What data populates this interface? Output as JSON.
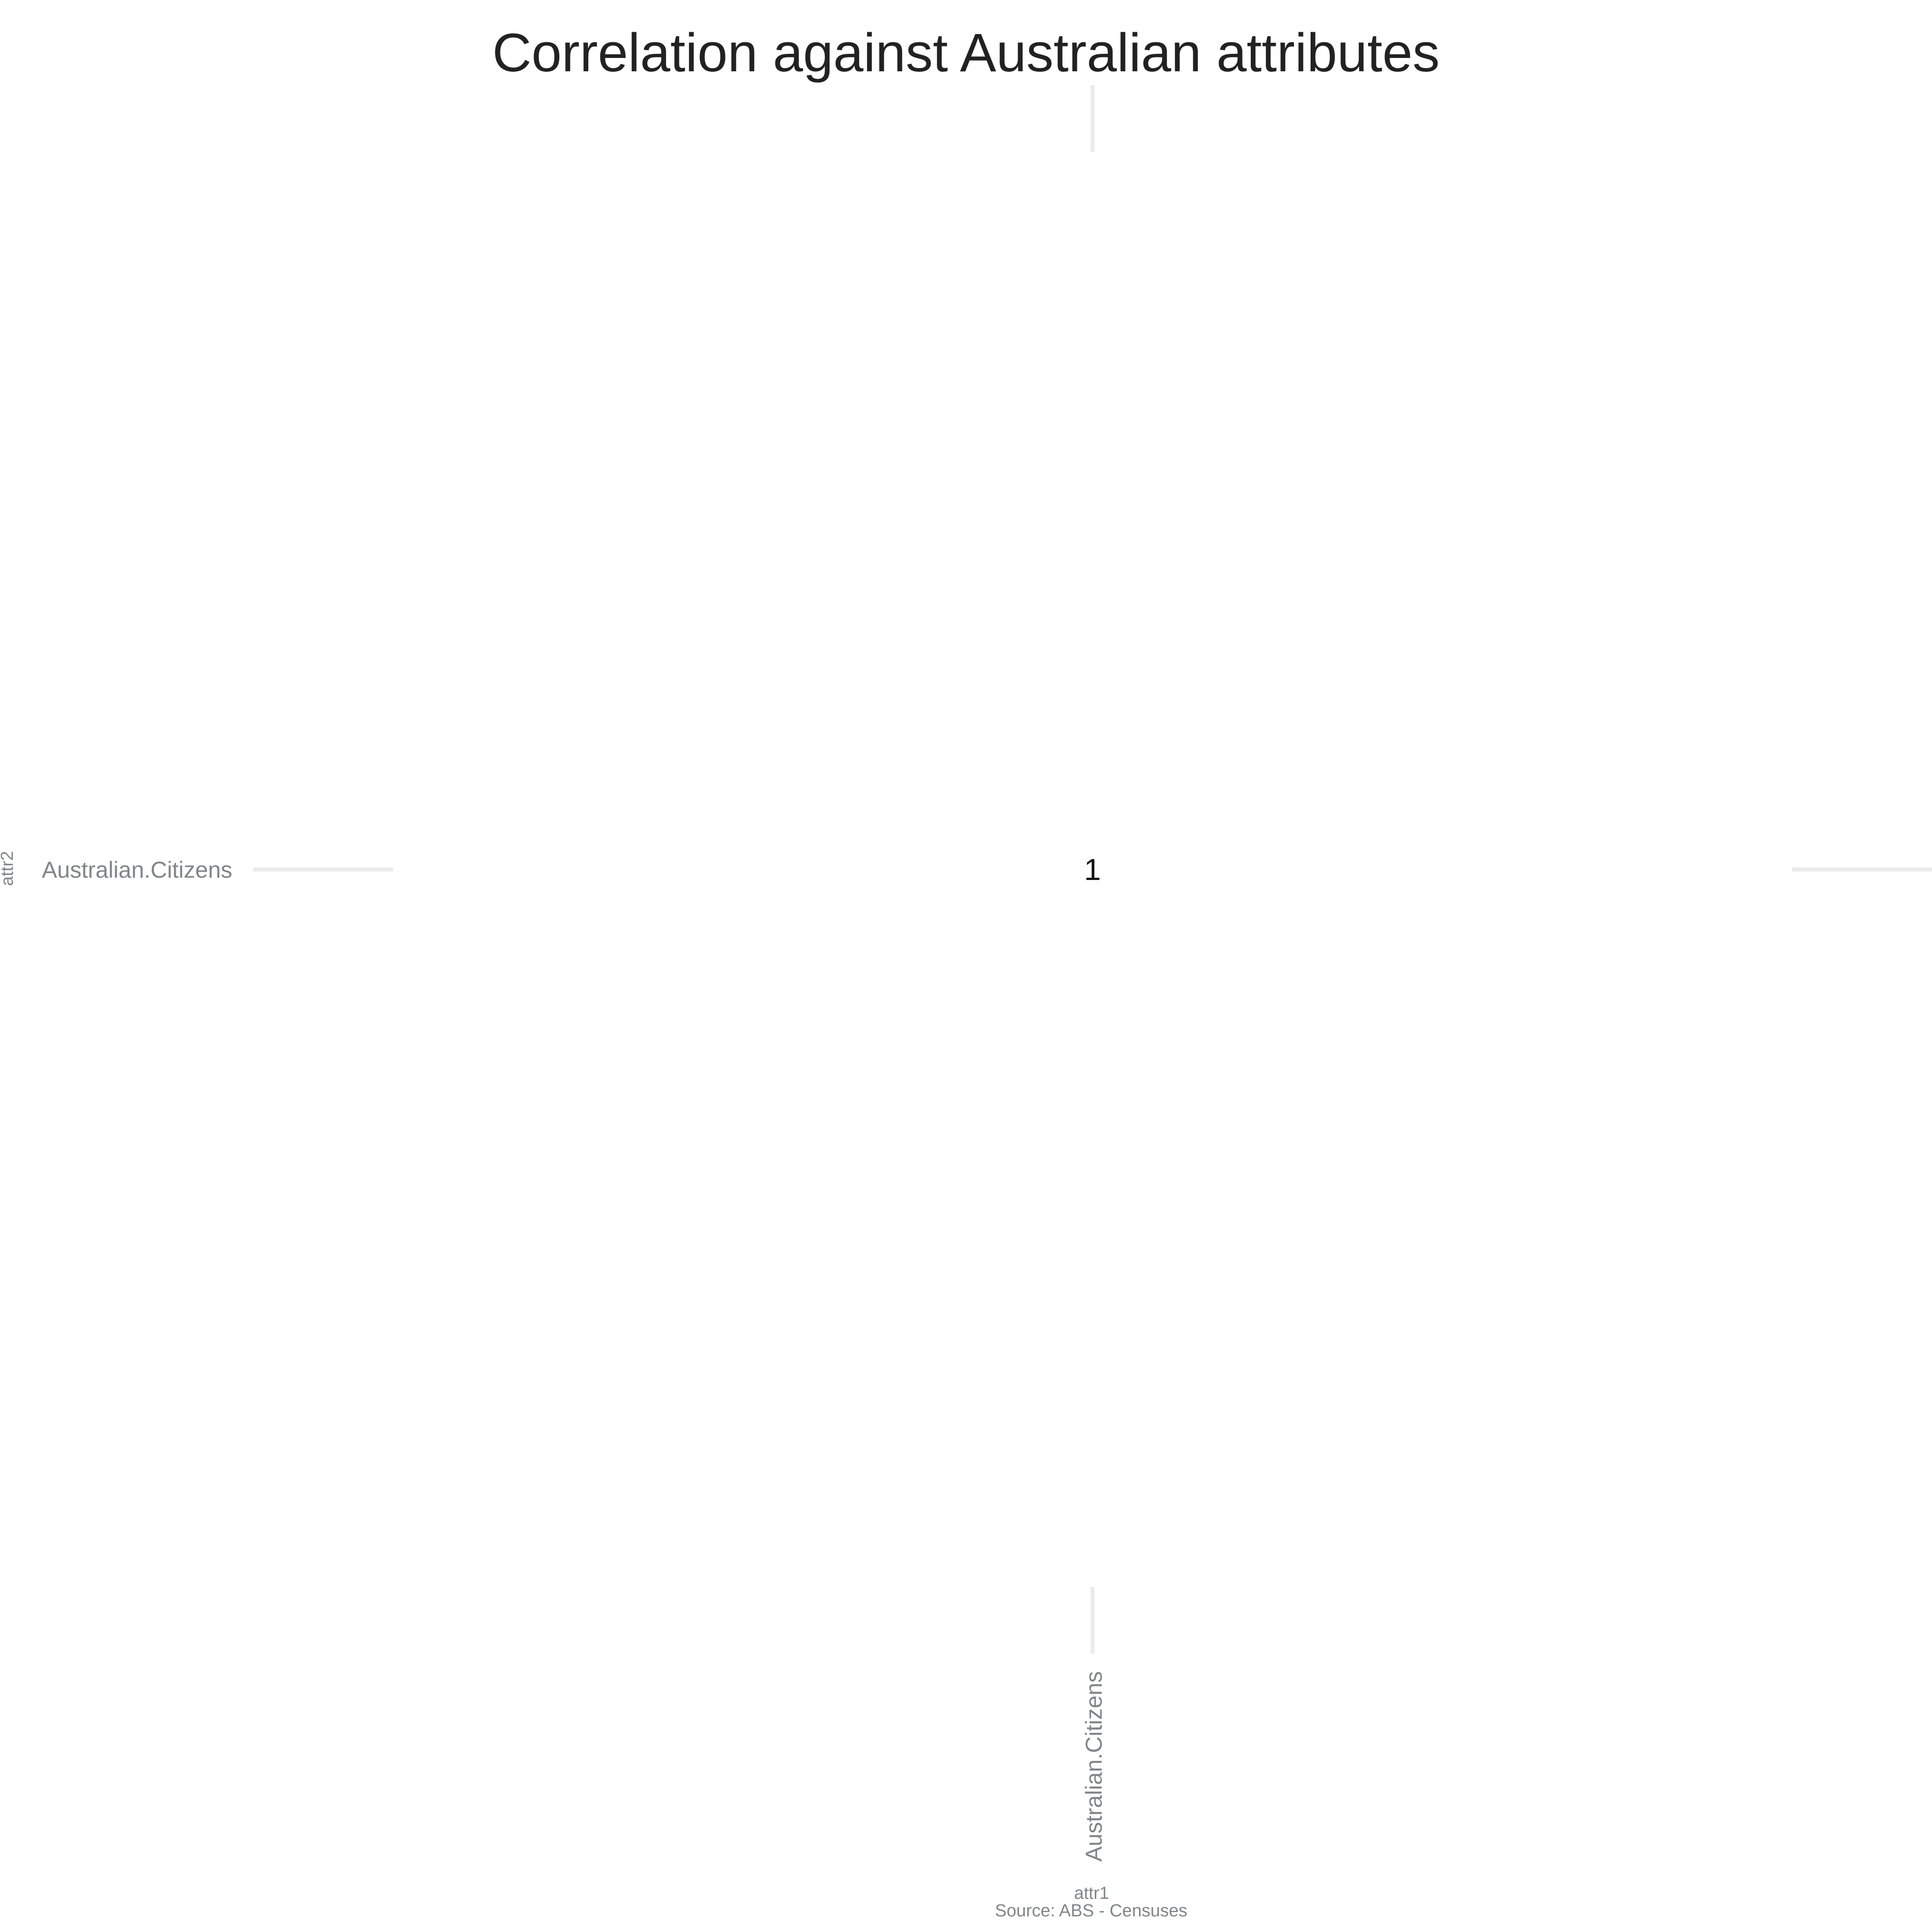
{
  "chart_data": {
    "type": "heatmap",
    "title": "Correlation against Australian attributes",
    "xlabel": "attr1",
    "ylabel": "attr2",
    "caption": "Source: ABS - Censuses",
    "x_categories": [
      "Australian.Citizens"
    ],
    "y_categories": [
      "Australian.Citizens"
    ],
    "cells": [
      {
        "x": "Australian.Citizens",
        "y": "Australian.Citizens",
        "value": 1,
        "label": "1"
      }
    ],
    "grid": true,
    "legend": "none"
  }
}
